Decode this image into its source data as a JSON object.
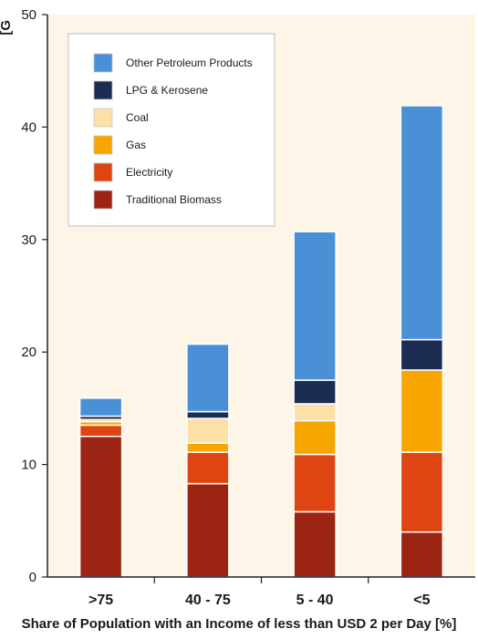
{
  "chart_data": {
    "type": "bar",
    "stacked": true,
    "categories": [
      ">75",
      "40 - 75",
      "5 - 40",
      "<5"
    ],
    "series": [
      {
        "name": "Traditional Biomass",
        "color": "#9b2413",
        "values": [
          12.5,
          8.3,
          5.8,
          4.0
        ]
      },
      {
        "name": "Electricity",
        "color": "#de4512",
        "values": [
          1.0,
          2.8,
          5.1,
          7.1
        ]
      },
      {
        "name": "Gas",
        "color": "#f7a600",
        "values": [
          0.3,
          0.8,
          3.0,
          7.3
        ]
      },
      {
        "name": "Coal",
        "color": "#fddfa8",
        "values": [
          0.2,
          2.2,
          1.5,
          0.0
        ]
      },
      {
        "name": "LPG & Kerosene",
        "color": "#1c2b52",
        "values": [
          0.3,
          0.6,
          2.1,
          2.7
        ]
      },
      {
        "name": "Other Petroleum Products",
        "color": "#4a90d6",
        "values": [
          1.6,
          6.0,
          13.2,
          20.8
        ]
      }
    ],
    "legend_order": [
      "Other Petroleum Products",
      "LPG & Kerosene",
      "Coal",
      "Gas",
      "Electricity",
      "Traditional Biomass"
    ],
    "xlabel": "Share of Population with an Income of less than USD 2 per Day [%]",
    "ylabel_fragment": "[G",
    "ylim": [
      0,
      50
    ],
    "yticks": [
      0,
      10,
      20,
      30,
      40,
      50
    ],
    "legend_position": "top-left",
    "grid": false,
    "background_color": "#fdf5e8",
    "bar_outline_color": "#ffffff"
  }
}
